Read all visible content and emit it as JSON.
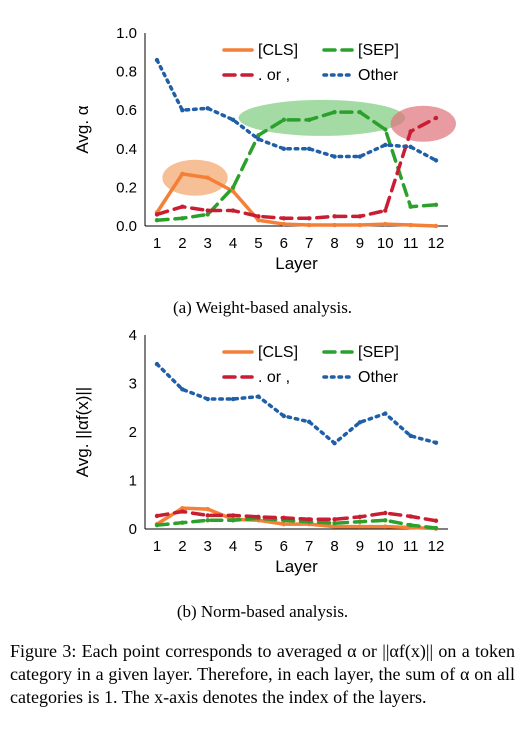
{
  "chart_data": [
    {
      "type": "line",
      "x": [
        1,
        2,
        3,
        4,
        5,
        6,
        7,
        8,
        9,
        10,
        11,
        12
      ],
      "xlabel": "Layer",
      "ylabel": "Avg. α",
      "ylim": [
        0,
        1
      ],
      "yticks": [
        "0.0",
        "0.2",
        "0.4",
        "0.6",
        "0.8",
        "1.0"
      ],
      "legend_position": "top-right",
      "series": [
        {
          "name": "[CLS]",
          "color": "#f47f36",
          "style": "solid",
          "values": [
            0.07,
            0.27,
            0.25,
            0.18,
            0.03,
            0.01,
            0.005,
            0.005,
            0.005,
            0.01,
            0.005,
            0.0
          ]
        },
        {
          "name": "[SEP]",
          "color": "#2ca02c",
          "style": "dashed",
          "values": [
            0.03,
            0.04,
            0.06,
            0.2,
            0.47,
            0.55,
            0.55,
            0.59,
            0.59,
            0.5,
            0.1,
            0.11
          ]
        },
        {
          "name": ". or ,",
          "color": "#c81d32",
          "style": "dashed",
          "values": [
            0.06,
            0.1,
            0.08,
            0.08,
            0.05,
            0.04,
            0.04,
            0.05,
            0.05,
            0.08,
            0.49,
            0.56
          ]
        },
        {
          "name": "Other",
          "color": "#1f5fa8",
          "style": "dotted",
          "values": [
            0.86,
            0.6,
            0.61,
            0.55,
            0.45,
            0.4,
            0.4,
            0.36,
            0.36,
            0.42,
            0.41,
            0.34
          ]
        }
      ],
      "highlights": [
        {
          "color": "#f4a468",
          "around_layers": [
            2,
            3
          ],
          "level": 0.25
        },
        {
          "color": "#7dca7d",
          "around_layers": [
            5,
            10
          ],
          "level": 0.56
        },
        {
          "color": "#e0707a",
          "around_layers": [
            11,
            12
          ],
          "level": 0.53
        }
      ]
    },
    {
      "type": "line",
      "x": [
        1,
        2,
        3,
        4,
        5,
        6,
        7,
        8,
        9,
        10,
        11,
        12
      ],
      "xlabel": "Layer",
      "ylabel": "Avg. ||αf(x)||",
      "ylim": [
        0,
        4
      ],
      "yticks": [
        "0",
        "1",
        "2",
        "3",
        "4"
      ],
      "legend_position": "top-right",
      "series": [
        {
          "name": "[CLS]",
          "color": "#f47f36",
          "style": "solid",
          "values": [
            0.1,
            0.43,
            0.41,
            0.2,
            0.18,
            0.1,
            0.1,
            0.05,
            0.05,
            0.05,
            0.03,
            0.01
          ]
        },
        {
          "name": "[SEP]",
          "color": "#2ca02c",
          "style": "dashed",
          "values": [
            0.08,
            0.13,
            0.18,
            0.18,
            0.22,
            0.18,
            0.15,
            0.12,
            0.15,
            0.18,
            0.08,
            0.02
          ]
        },
        {
          "name": ". or ,",
          "color": "#c81d32",
          "style": "dashed",
          "values": [
            0.27,
            0.36,
            0.28,
            0.28,
            0.25,
            0.23,
            0.2,
            0.2,
            0.25,
            0.33,
            0.26,
            0.17
          ]
        },
        {
          "name": "Other",
          "color": "#1f5fa8",
          "style": "dotted",
          "values": [
            3.4,
            2.88,
            2.68,
            2.68,
            2.73,
            2.33,
            2.21,
            1.77,
            2.2,
            2.38,
            1.92,
            1.78
          ]
        }
      ]
    }
  ],
  "captions": {
    "a": "(a) Weight-based analysis.",
    "b": "(b) Norm-based analysis."
  },
  "figure_caption": "Figure 3: Each point corresponds to averaged α or ||αf(x)|| on a token category in a given layer. Therefore, in each layer, the sum of α on all categories is 1. The x-axis denotes the index of the layers."
}
